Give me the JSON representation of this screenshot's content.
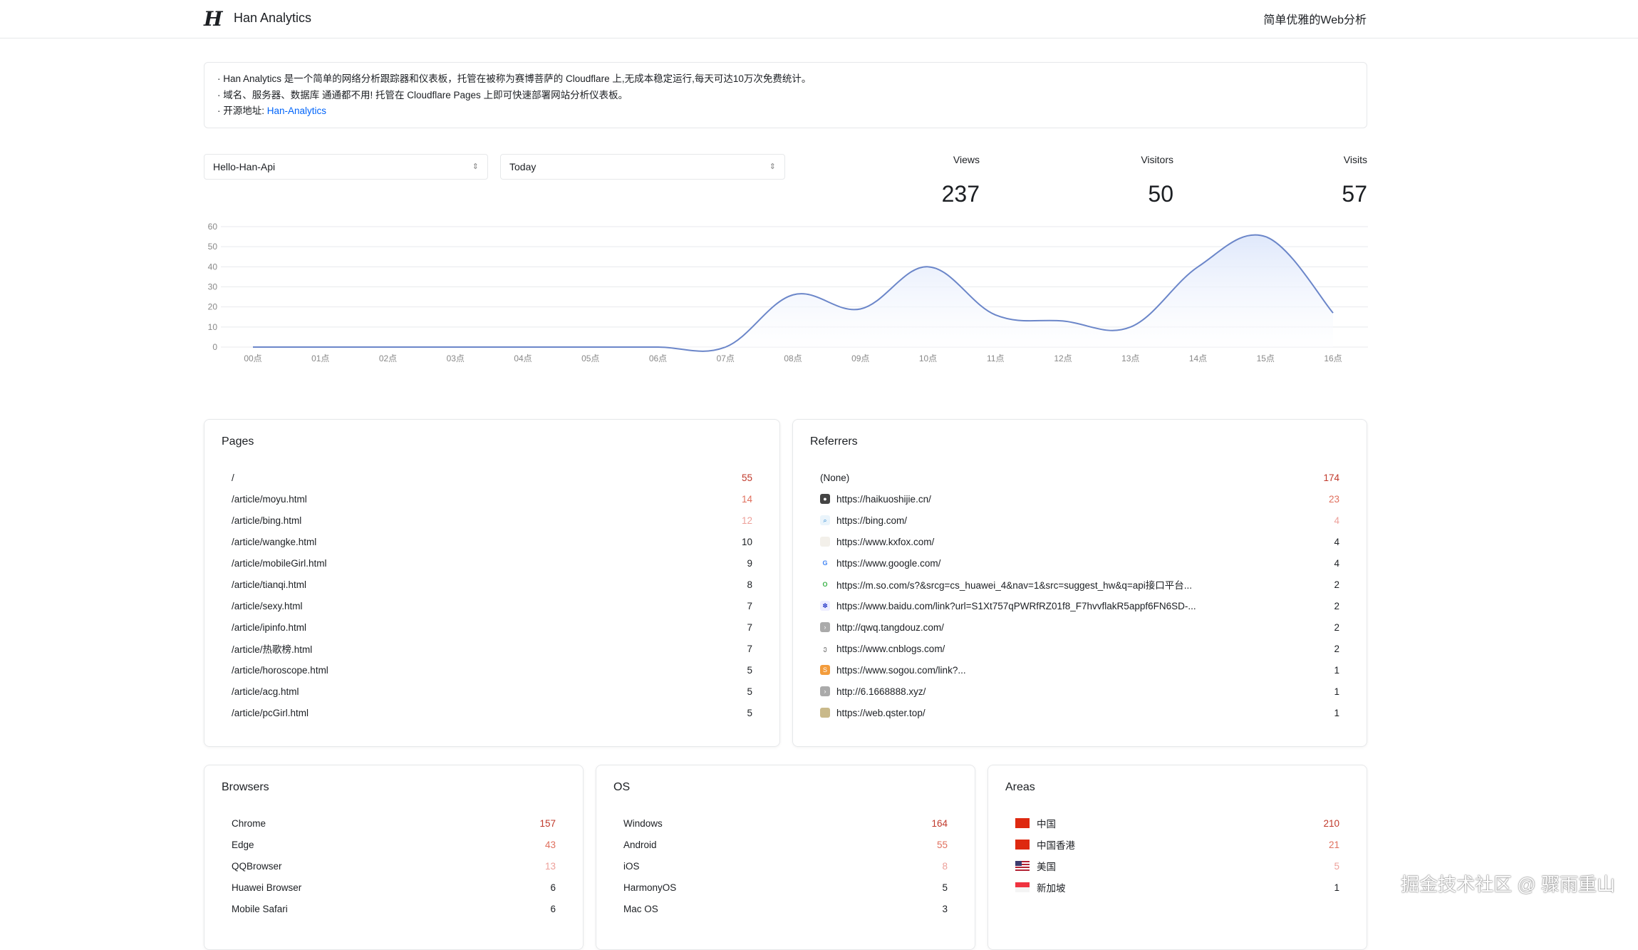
{
  "header": {
    "logo": "H",
    "title": "Han Analytics",
    "slogan": "简单优雅的Web分析"
  },
  "info": {
    "line1": "· Han Analytics 是一个简单的网络分析跟踪器和仪表板，托管在被称为赛博菩萨的 Cloudflare 上,无成本稳定运行,每天可达10万次免费统计。",
    "line2": "· 域名、服务器、数据库 通通都不用! 托管在 Cloudflare Pages 上即可快速部署网站分析仪表板。",
    "line3_prefix": "· 开源地址: ",
    "link": "Han-Analytics"
  },
  "filters": {
    "site": "Hello-Han-Api",
    "range": "Today"
  },
  "stats": [
    {
      "label": "Views",
      "value": "237"
    },
    {
      "label": "Visitors",
      "value": "50"
    },
    {
      "label": "Visits",
      "value": "57"
    }
  ],
  "colors": {
    "line": "#6b86c9",
    "fill": "#dfe8fb",
    "top1": "#c0392b",
    "top2": "#e0705e",
    "top3": "#eda09a"
  },
  "chart_data": {
    "type": "area",
    "x": [
      "00点",
      "01点",
      "02点",
      "03点",
      "04点",
      "05点",
      "06点",
      "07点",
      "08点",
      "09点",
      "10点",
      "11点",
      "12点",
      "13点",
      "14点",
      "15点",
      "16点"
    ],
    "values": [
      0,
      0,
      0,
      0,
      0,
      0,
      0,
      0,
      26,
      19,
      40,
      16,
      13,
      10,
      40,
      55,
      17
    ],
    "ylim": [
      0,
      60
    ],
    "yticks": [
      0,
      10,
      20,
      30,
      40,
      50,
      60
    ],
    "grid": true
  },
  "pages": {
    "title": "Pages",
    "items": [
      {
        "name": "/",
        "count": "55"
      },
      {
        "name": "/article/moyu.html",
        "count": "14"
      },
      {
        "name": "/article/bing.html",
        "count": "12"
      },
      {
        "name": "/article/wangke.html",
        "count": "10"
      },
      {
        "name": "/article/mobileGirl.html",
        "count": "9"
      },
      {
        "name": "/article/tianqi.html",
        "count": "8"
      },
      {
        "name": "/article/sexy.html",
        "count": "7"
      },
      {
        "name": "/article/ipinfo.html",
        "count": "7"
      },
      {
        "name": "/article/热歌榜.html",
        "count": "7"
      },
      {
        "name": "/article/horoscope.html",
        "count": "5"
      },
      {
        "name": "/article/acg.html",
        "count": "5"
      },
      {
        "name": "/article/pcGirl.html",
        "count": "5"
      }
    ]
  },
  "referrers": {
    "title": "Referrers",
    "items": [
      {
        "name": "(None)",
        "count": "174",
        "icon": ""
      },
      {
        "name": "https://haikuoshijie.cn/",
        "count": "23",
        "icon": "haikuo-favicon"
      },
      {
        "name": "https://bing.com/",
        "count": "4",
        "icon": "bing-favicon"
      },
      {
        "name": "https://www.kxfox.com/",
        "count": "4",
        "icon": "kxfox-favicon"
      },
      {
        "name": "https://www.google.com/",
        "count": "4",
        "icon": "google-favicon"
      },
      {
        "name": "https://m.so.com/s?&srcg=cs_huawei_4&nav=1&src=suggest_hw&q=api接口平台...",
        "count": "2",
        "icon": "so-favicon"
      },
      {
        "name": "https://www.baidu.com/link?url=S1Xt757qPWRfRZ01f8_F7hvvflakR5appf6FN6SD-...",
        "count": "2",
        "icon": "baidu-favicon"
      },
      {
        "name": "http://qwq.tangdouz.com/",
        "count": "2",
        "icon": "globe-favicon"
      },
      {
        "name": "https://www.cnblogs.com/",
        "count": "2",
        "icon": "cnblogs-favicon"
      },
      {
        "name": "https://www.sogou.com/link?...",
        "count": "1",
        "icon": "sogou-favicon"
      },
      {
        "name": "http://6.1668888.xyz/",
        "count": "1",
        "icon": "globe-favicon"
      },
      {
        "name": "https://web.qster.top/",
        "count": "1",
        "icon": "qster-favicon"
      }
    ]
  },
  "browsers": {
    "title": "Browsers",
    "items": [
      {
        "name": "Chrome",
        "count": "157"
      },
      {
        "name": "Edge",
        "count": "43"
      },
      {
        "name": "QQBrowser",
        "count": "13"
      },
      {
        "name": "Huawei Browser",
        "count": "6"
      },
      {
        "name": "Mobile Safari",
        "count": "6"
      }
    ]
  },
  "os": {
    "title": "OS",
    "items": [
      {
        "name": "Windows",
        "count": "164"
      },
      {
        "name": "Android",
        "count": "55"
      },
      {
        "name": "iOS",
        "count": "8"
      },
      {
        "name": "HarmonyOS",
        "count": "5"
      },
      {
        "name": "Mac OS",
        "count": "3"
      }
    ]
  },
  "areas": {
    "title": "Areas",
    "items": [
      {
        "name": "中国",
        "count": "210",
        "flag": "cn"
      },
      {
        "name": "中国香港",
        "count": "21",
        "flag": "cn"
      },
      {
        "name": "美国",
        "count": "5",
        "flag": "us"
      },
      {
        "name": "新加坡",
        "count": "1",
        "flag": "sg"
      }
    ]
  },
  "watermark": "掘金技术社区 @ 骤雨重山"
}
